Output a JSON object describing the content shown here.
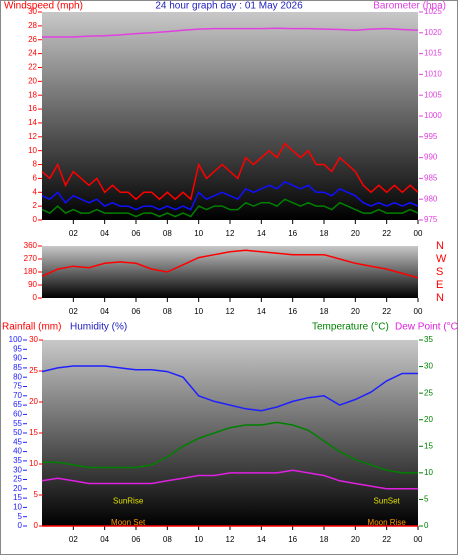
{
  "chart_data": [
    {
      "type": "line",
      "title": "24 hour graph day : 01 May 2026",
      "ylabel": "Windspeed (mph)",
      "y2label": "Barometer (hpa)",
      "xlim": [
        0,
        24
      ],
      "xticks": [
        {
          "value": 2,
          "label": "02"
        },
        {
          "value": 4,
          "label": "04"
        },
        {
          "value": 6,
          "label": "06"
        },
        {
          "value": 8,
          "label": "08"
        },
        10,
        12,
        14,
        16,
        18,
        20,
        22,
        {
          "value": 24,
          "label": "00"
        }
      ],
      "ylim": [
        0,
        30
      ],
      "yticks": [
        0,
        2,
        4,
        6,
        8,
        10,
        12,
        14,
        16,
        18,
        20,
        22,
        24,
        26,
        28,
        30
      ],
      "y2lim": [
        975,
        1025
      ],
      "y2ticks": [
        975,
        980,
        985,
        990,
        995,
        1000,
        1005,
        1010,
        1015,
        1020,
        1025
      ],
      "series": [
        {
          "color": "#ff0000",
          "axis": "y",
          "x": [
            0,
            0.5,
            1,
            1.5,
            2,
            2.5,
            3,
            3.5,
            4,
            4.5,
            5,
            5.5,
            6,
            6.5,
            7,
            7.5,
            8,
            8.5,
            9,
            9.5,
            10,
            10.5,
            11,
            11.5,
            12,
            12.5,
            13,
            13.5,
            14,
            14.5,
            15,
            15.5,
            16,
            16.5,
            17,
            17.5,
            18,
            18.5,
            19,
            19.5,
            20,
            20.5,
            21,
            21.5,
            22,
            22.5,
            23,
            23.5,
            24
          ],
          "values": [
            7,
            6,
            8,
            5,
            7,
            6,
            5,
            6,
            4,
            5,
            4,
            4,
            3,
            4,
            4,
            3,
            4,
            3,
            4,
            3,
            8,
            6,
            7,
            8,
            7,
            6,
            9,
            8,
            9,
            10,
            9,
            11,
            10,
            9,
            10,
            8,
            8,
            7,
            9,
            8,
            7,
            5,
            4,
            5,
            4,
            5,
            4,
            5,
            4
          ]
        },
        {
          "color": "#1010ff",
          "axis": "y",
          "x": [
            0,
            0.5,
            1,
            1.5,
            2,
            2.5,
            3,
            3.5,
            4,
            4.5,
            5,
            5.5,
            6,
            6.5,
            7,
            7.5,
            8,
            8.5,
            9,
            9.5,
            10,
            10.5,
            11,
            11.5,
            12,
            12.5,
            13,
            13.5,
            14,
            14.5,
            15,
            15.5,
            16,
            16.5,
            17,
            17.5,
            18,
            18.5,
            19,
            19.5,
            20,
            20.5,
            21,
            21.5,
            22,
            22.5,
            23,
            23.5,
            24
          ],
          "values": [
            3.5,
            3,
            4,
            2.5,
            3.5,
            3,
            2.5,
            3,
            2,
            2.5,
            2,
            2,
            1.5,
            2,
            2,
            1.5,
            2,
            1.5,
            2,
            1.5,
            4,
            3,
            3.5,
            4,
            3.5,
            3,
            4.5,
            4,
            4.5,
            5,
            4.5,
            5.5,
            5,
            4.5,
            5,
            4,
            4,
            3.5,
            4.5,
            4,
            3.5,
            2.5,
            2,
            2.5,
            2,
            2.5,
            2,
            2.5,
            2
          ]
        },
        {
          "color": "#008000",
          "axis": "y",
          "x": [
            0,
            0.5,
            1,
            1.5,
            2,
            2.5,
            3,
            3.5,
            4,
            4.5,
            5,
            5.5,
            6,
            6.5,
            7,
            7.5,
            8,
            8.5,
            9,
            9.5,
            10,
            10.5,
            11,
            11.5,
            12,
            12.5,
            13,
            13.5,
            14,
            14.5,
            15,
            15.5,
            16,
            16.5,
            17,
            17.5,
            18,
            18.5,
            19,
            19.5,
            20,
            20.5,
            21,
            21.5,
            22,
            22.5,
            23,
            23.5,
            24
          ],
          "values": [
            1.5,
            1,
            2,
            1,
            1.5,
            1,
            1,
            1.5,
            1,
            1,
            1,
            1,
            0.5,
            1,
            1,
            0.5,
            1,
            0.5,
            1,
            0.5,
            2,
            1.5,
            2,
            2,
            1.5,
            1.5,
            2.5,
            2,
            2.5,
            2.5,
            2,
            3,
            2.5,
            2,
            2.5,
            2,
            2,
            1.5,
            2.5,
            2,
            1.5,
            1,
            1,
            1.5,
            1,
            1,
            1,
            1.5,
            1
          ]
        },
        {
          "color": "#e040e0",
          "axis": "y2",
          "x": [
            0,
            1,
            2,
            3,
            4,
            5,
            6,
            7,
            8,
            9,
            10,
            11,
            12,
            13,
            14,
            15,
            16,
            17,
            18,
            19,
            20,
            21,
            22,
            23,
            24
          ],
          "values": [
            1019,
            1019,
            1019,
            1019.2,
            1019.3,
            1019.5,
            1019.8,
            1020,
            1020.3,
            1020.6,
            1020.9,
            1021,
            1021,
            1021,
            1021,
            1021.1,
            1021,
            1021,
            1020.9,
            1020.8,
            1020.6,
            1020.9,
            1021,
            1020.8,
            1020.6
          ]
        }
      ]
    },
    {
      "type": "line",
      "xlim": [
        0,
        24
      ],
      "xticks": [
        {
          "value": 2,
          "label": "02"
        },
        {
          "value": 4,
          "label": "04"
        },
        {
          "value": 6,
          "label": "06"
        },
        {
          "value": 8,
          "label": "08"
        },
        10,
        12,
        14,
        16,
        18,
        20,
        22,
        {
          "value": 24,
          "label": "00"
        }
      ],
      "ylim": [
        0,
        360
      ],
      "yticks": [
        0,
        90,
        180,
        270,
        360
      ],
      "compass": [
        "N",
        "E",
        "S",
        "W",
        "N"
      ],
      "series": [
        {
          "color": "#ff0000",
          "axis": "y",
          "x": [
            0,
            1,
            2,
            3,
            4,
            5,
            6,
            7,
            8,
            9,
            10,
            11,
            12,
            13,
            14,
            15,
            16,
            17,
            18,
            19,
            20,
            21,
            22,
            23,
            24
          ],
          "values": [
            150,
            200,
            220,
            210,
            240,
            250,
            240,
            200,
            180,
            230,
            280,
            300,
            320,
            330,
            320,
            310,
            300,
            300,
            300,
            270,
            240,
            220,
            200,
            170,
            140
          ]
        }
      ]
    },
    {
      "type": "line",
      "labels": [
        "Rainfall (mm)",
        "Humidity (%)",
        "Temperature (°C)",
        "Dew Point (°C"
      ],
      "xlim": [
        0,
        24
      ],
      "xticks": [
        {
          "value": 2,
          "label": "02"
        },
        {
          "value": 4,
          "label": "04"
        },
        {
          "value": 6,
          "label": "06"
        },
        {
          "value": 8,
          "label": "08"
        },
        10,
        12,
        14,
        16,
        18,
        20,
        22,
        {
          "value": 24,
          "label": "00"
        }
      ],
      "ylim": [
        0,
        100
      ],
      "yticks": [
        0,
        5,
        10,
        15,
        20,
        25,
        30,
        35,
        40,
        45,
        50,
        55,
        60,
        65,
        70,
        75,
        80,
        85,
        90,
        95,
        100
      ],
      "y3lim": [
        0,
        30
      ],
      "y3ticks": [
        0,
        5,
        10,
        15,
        20,
        25,
        30
      ],
      "y2lim": [
        0,
        35
      ],
      "y2ticks": [
        0,
        5,
        10,
        15,
        20,
        25,
        30,
        35
      ],
      "annotations": [
        {
          "text": "SunRise",
          "x": 5.5,
          "y": 4
        },
        {
          "text": "SunSet",
          "x": 22,
          "y": 4
        },
        {
          "text": "Moon Set",
          "x": 5.5,
          "y": 0.5
        },
        {
          "text": "Moon Rise",
          "x": 22,
          "y": 0.5
        }
      ],
      "series": [
        {
          "color": "#2020ff",
          "axis": "y",
          "x": [
            0,
            1,
            2,
            3,
            4,
            5,
            6,
            7,
            8,
            9,
            10,
            11,
            12,
            13,
            14,
            15,
            16,
            17,
            18,
            19,
            20,
            21,
            22,
            23,
            24
          ],
          "values": [
            83,
            85,
            86,
            86,
            86,
            85,
            84,
            84,
            83,
            80,
            70,
            67,
            65,
            63,
            62,
            64,
            67,
            69,
            70,
            65,
            68,
            72,
            78,
            82,
            82
          ]
        },
        {
          "color": "#008000",
          "axis": "y2",
          "x": [
            0,
            1,
            2,
            3,
            4,
            5,
            6,
            7,
            8,
            9,
            10,
            11,
            12,
            13,
            14,
            15,
            16,
            17,
            18,
            19,
            20,
            21,
            22,
            23,
            24
          ],
          "values": [
            12,
            12,
            11.5,
            11,
            11,
            11,
            11,
            11.5,
            13,
            15,
            16.5,
            17.5,
            18.5,
            19,
            19,
            19.5,
            19,
            18,
            16,
            14,
            12.5,
            11.5,
            10.5,
            10,
            10
          ]
        },
        {
          "color": "#e020e0",
          "axis": "y2",
          "x": [
            0,
            1,
            2,
            3,
            4,
            5,
            6,
            7,
            8,
            9,
            10,
            11,
            12,
            13,
            14,
            15,
            16,
            17,
            18,
            19,
            20,
            21,
            22,
            23,
            24
          ],
          "values": [
            8.5,
            9,
            8.5,
            8,
            8,
            8,
            8,
            8,
            8.5,
            9,
            9.5,
            9.5,
            10,
            10,
            10,
            10,
            10.5,
            10,
            9.5,
            8.5,
            8,
            7.5,
            7,
            7,
            7
          ]
        },
        {
          "color": "#ff0000",
          "axis": "y3",
          "x": [
            0,
            24
          ],
          "values": [
            0,
            0
          ]
        }
      ]
    }
  ]
}
